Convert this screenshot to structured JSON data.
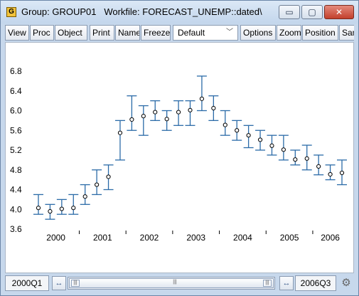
{
  "window": {
    "app_icon": "G",
    "title": "Group: GROUP01   Workfile: FORECAST_UNEMP::dated\\",
    "controls": {
      "minimize": "▭",
      "maximize": "▢",
      "close": "✕"
    }
  },
  "toolbar": {
    "view": "View",
    "proc": "Proc",
    "object": "Object",
    "print": "Print",
    "name": "Name",
    "freeze": "Freeze",
    "dropdown_value": "Default",
    "options": "Options",
    "zoom": "Zoom",
    "position": "Position",
    "sample": "Sam"
  },
  "chart_data": {
    "type": "scatter",
    "subtype": "error-bar (high/low with close marker)",
    "ylim": [
      3.6,
      6.8
    ],
    "yticks": [
      "3.6",
      "4.0",
      "4.4",
      "4.8",
      "5.2",
      "5.6",
      "6.0",
      "6.4",
      "6.8"
    ],
    "xtick_labels": [
      "2000",
      "2001",
      "2002",
      "2003",
      "2004",
      "2005",
      "2006"
    ],
    "x": [
      "2000Q1",
      "2000Q2",
      "2000Q3",
      "2000Q4",
      "2001Q1",
      "2001Q2",
      "2001Q3",
      "2001Q4",
      "2002Q1",
      "2002Q2",
      "2002Q3",
      "2002Q4",
      "2003Q1",
      "2003Q2",
      "2003Q3",
      "2003Q4",
      "2004Q1",
      "2004Q2",
      "2004Q3",
      "2004Q4",
      "2005Q1",
      "2005Q2",
      "2005Q3",
      "2005Q4",
      "2006Q1",
      "2006Q2",
      "2006Q3"
    ],
    "high": [
      4.3,
      4.1,
      4.2,
      4.3,
      4.5,
      4.8,
      4.9,
      5.8,
      6.3,
      6.1,
      6.2,
      6.0,
      6.2,
      6.2,
      6.7,
      6.3,
      6.0,
      5.8,
      5.7,
      5.6,
      5.5,
      5.5,
      5.2,
      5.3,
      5.1,
      4.9,
      5.0
    ],
    "low": [
      3.9,
      3.8,
      3.9,
      3.9,
      4.1,
      4.3,
      4.4,
      5.0,
      5.6,
      5.5,
      5.8,
      5.6,
      5.7,
      5.7,
      6.0,
      5.8,
      5.5,
      5.4,
      5.25,
      5.2,
      5.1,
      5.0,
      4.9,
      4.8,
      4.7,
      4.6,
      4.5
    ],
    "close": [
      4.03,
      3.96,
      4.01,
      4.03,
      4.26,
      4.5,
      4.66,
      5.55,
      5.82,
      5.89,
      5.97,
      5.83,
      5.97,
      6.01,
      6.24,
      6.05,
      5.71,
      5.6,
      5.5,
      5.41,
      5.29,
      5.21,
      5.01,
      5.03,
      4.87,
      4.71,
      4.74
    ],
    "colors": {
      "bars": "#2b6ba8",
      "markers": "#000000"
    },
    "grid": false
  },
  "sample": {
    "start": "2000Q1",
    "end": "2006Q3",
    "settings_icon": "gear-icon"
  },
  "icons": {
    "scroll_left_right": "↔",
    "grip": "|||"
  }
}
